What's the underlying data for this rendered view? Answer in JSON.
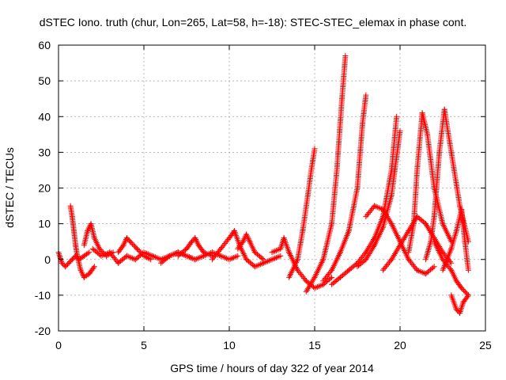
{
  "chart_data": {
    "type": "scatter",
    "title": "dSTEC Iono. truth (chur, Lon=265, Lat=58, h=-18): STEC-STEC_elemax in phase cont.",
    "xlabel": "GPS time / hours of day 322 of year 2014",
    "ylabel": "dSTEC  / TECUs",
    "xlim": [
      0,
      25
    ],
    "ylim": [
      -20,
      60
    ],
    "xticks": [
      0,
      5,
      10,
      15,
      20,
      25
    ],
    "yticks": [
      -20,
      -10,
      0,
      10,
      20,
      30,
      40,
      50,
      60
    ],
    "grid": true,
    "marker": "+",
    "color": "#ff0000",
    "series": [
      {
        "x": [
          0.0,
          0.2,
          0.4,
          0.6,
          0.8,
          1.0,
          1.2,
          1.5,
          1.8
        ],
        "values": [
          2,
          -1,
          -2,
          -1,
          0,
          1,
          0,
          1,
          2
        ]
      },
      {
        "x": [
          0.7,
          0.8,
          0.9,
          1.0,
          1.1,
          1.3,
          1.5,
          1.8,
          2.1
        ],
        "values": [
          15,
          12,
          8,
          4,
          1,
          -3,
          -5,
          -4,
          -2
        ]
      },
      {
        "x": [
          1.5,
          1.7,
          1.9,
          2.1,
          2.4,
          2.8,
          3.2
        ],
        "values": [
          4,
          8,
          10,
          6,
          3,
          1,
          2
        ]
      },
      {
        "x": [
          2.0,
          2.5,
          3.0,
          3.5,
          4.0,
          4.5,
          5.0,
          5.5,
          6.0,
          6.5,
          7.0,
          7.5,
          8.0
        ],
        "values": [
          3,
          1,
          2,
          -1,
          1,
          0,
          2,
          1,
          0,
          1,
          2,
          1,
          0
        ]
      },
      {
        "x": [
          3.5,
          3.8,
          4.0,
          4.2,
          4.6,
          5.0,
          5.4
        ],
        "values": [
          2,
          4,
          6,
          5,
          3,
          1,
          0
        ]
      },
      {
        "x": [
          6.0,
          6.5,
          7.0,
          7.5,
          8.0,
          8.5,
          9.0,
          9.5,
          10.0,
          10.5
        ],
        "values": [
          -1,
          1,
          2,
          1,
          0,
          1,
          2,
          1,
          0,
          1
        ]
      },
      {
        "x": [
          7.0,
          7.5,
          7.8,
          8.0,
          8.2,
          8.5,
          9.0
        ],
        "values": [
          1,
          3,
          5,
          6,
          4,
          2,
          1
        ]
      },
      {
        "x": [
          9.0,
          9.5,
          10.0,
          10.3,
          10.6,
          11.0,
          11.5,
          12.0,
          12.5,
          13.0
        ],
        "values": [
          0,
          3,
          6,
          8,
          4,
          0,
          -2,
          -1,
          0,
          1
        ]
      },
      {
        "x": [
          10.5,
          10.8,
          11.0,
          11.2,
          11.5,
          12.0
        ],
        "values": [
          3,
          5,
          7,
          5,
          2,
          0
        ]
      },
      {
        "x": [
          12.5,
          13.0,
          13.2,
          13.5,
          14.0,
          14.5,
          15.0,
          15.5,
          16.0
        ],
        "values": [
          2,
          3,
          6,
          2,
          -3,
          -6,
          -8,
          -7,
          -5
        ]
      },
      {
        "x": [
          13.5,
          14.0,
          14.3,
          14.6,
          14.8,
          15.0
        ],
        "values": [
          -5,
          0,
          8,
          18,
          25,
          31
        ]
      },
      {
        "x": [
          14.5,
          15.0,
          15.5,
          16.0,
          16.3,
          16.6,
          16.8
        ],
        "values": [
          -9,
          -5,
          0,
          10,
          25,
          45,
          57
        ]
      },
      {
        "x": [
          15.5,
          16.0,
          16.5,
          17.0,
          17.5,
          17.8,
          18.0
        ],
        "values": [
          -6,
          -3,
          2,
          8,
          20,
          38,
          46
        ]
      },
      {
        "x": [
          16.0,
          16.5,
          17.0,
          17.5,
          18.0,
          18.5,
          19.0,
          19.5,
          19.8
        ],
        "values": [
          -7,
          -5,
          -3,
          -1,
          2,
          6,
          12,
          25,
          40
        ]
      },
      {
        "x": [
          17.5,
          18.0,
          18.5,
          19.0,
          19.5,
          20.0
        ],
        "values": [
          -2,
          0,
          4,
          9,
          18,
          36
        ]
      },
      {
        "x": [
          18.0,
          18.5,
          19.0,
          19.5,
          20.0,
          20.5,
          21.0,
          21.5,
          22.0
        ],
        "values": [
          12,
          15,
          14,
          10,
          5,
          0,
          -3,
          -4,
          -2
        ]
      },
      {
        "x": [
          19.0,
          19.5,
          20.0,
          20.5,
          21.0,
          21.5,
          22.0,
          22.5,
          23.0
        ],
        "values": [
          -3,
          0,
          4,
          8,
          12,
          10,
          6,
          2,
          -1
        ]
      },
      {
        "x": [
          20.5,
          20.8,
          21.0,
          21.3,
          21.6,
          22.0,
          22.5,
          23.0
        ],
        "values": [
          2,
          10,
          25,
          41,
          35,
          20,
          10,
          5
        ]
      },
      {
        "x": [
          21.5,
          21.8,
          22.0,
          22.3,
          22.6,
          23.0,
          23.5,
          24.0
        ],
        "values": [
          0,
          5,
          12,
          30,
          42,
          30,
          15,
          5
        ]
      },
      {
        "x": [
          22.5,
          23.0,
          23.3,
          23.6,
          23.8,
          24.0
        ],
        "values": [
          -3,
          3,
          8,
          14,
          5,
          -3
        ]
      },
      {
        "x": [
          23.0,
          23.3,
          23.5,
          23.7,
          24.0
        ],
        "values": [
          -10,
          -14,
          -15,
          -12,
          -10
        ]
      },
      {
        "x": [
          22.0,
          22.5,
          23.0,
          23.3,
          23.6,
          24.0
        ],
        "values": [
          5,
          0,
          -3,
          -6,
          -8,
          -10
        ]
      }
    ]
  }
}
